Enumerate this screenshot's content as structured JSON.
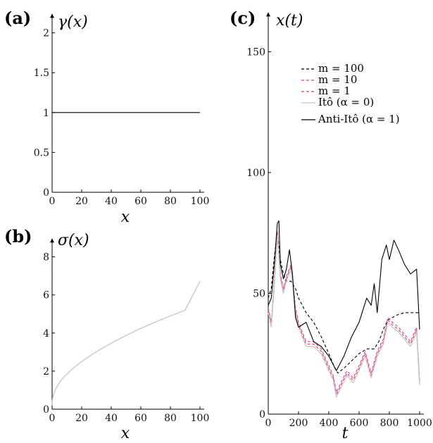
{
  "chart_data": [
    {
      "panel": "(a)",
      "type": "line",
      "ylabel": "γ(x)",
      "xlabel": "x",
      "xlim": [
        0,
        100
      ],
      "ylim": [
        0,
        2.2
      ],
      "xticks": [
        0,
        20,
        40,
        60,
        80,
        100
      ],
      "yticks": [
        0,
        0.5,
        1,
        1.5,
        2
      ],
      "grid": false,
      "series": [
        {
          "color": "#000000",
          "x": [
            0,
            100
          ],
          "y": [
            1,
            1
          ]
        }
      ]
    },
    {
      "panel": "(b)",
      "type": "line",
      "ylabel": "σ(x)",
      "xlabel": "x",
      "xlim": [
        0,
        100
      ],
      "ylim": [
        0,
        8.8
      ],
      "xticks": [
        0,
        20,
        40,
        60,
        80,
        100
      ],
      "yticks": [
        0,
        2,
        4,
        6,
        8
      ],
      "grid": false,
      "series": [
        {
          "color": "#c8c8c8",
          "x": [
            0,
            0.2,
            0.5,
            1,
            2,
            3,
            5,
            7,
            10,
            15,
            20,
            25,
            30,
            40,
            50,
            60,
            70,
            80,
            90,
            100
          ],
          "y": [
            0.2,
            0.45,
            0.61,
            0.77,
            0.98,
            1.14,
            1.4,
            1.6,
            1.85,
            2.2,
            2.5,
            2.77,
            3.02,
            3.47,
            3.87,
            4.24,
            4.58,
            4.9,
            5.2,
            6.72
          ]
        }
      ]
    },
    {
      "panel": "(c)",
      "type": "line",
      "ylabel": "x(t)",
      "xlabel": "t",
      "xlim": [
        0,
        1000
      ],
      "ylim": [
        0,
        165
      ],
      "xticks": [
        0,
        200,
        400,
        600,
        800,
        1000
      ],
      "yticks": [
        0,
        50,
        100,
        150
      ],
      "grid": false,
      "legend_position": "top-right",
      "series": [
        {
          "name": "m = 100",
          "color": "#000000",
          "style": "dashed",
          "x": [
            0,
            20,
            40,
            60,
            80,
            100,
            120,
            150,
            180,
            200,
            250,
            300,
            350,
            400,
            440,
            460,
            500,
            550,
            600,
            650,
            700,
            730,
            760,
            790,
            820,
            850,
            900,
            950,
            1000
          ],
          "y": [
            48,
            52,
            65,
            75,
            64,
            58,
            55,
            55,
            52,
            48,
            42,
            38,
            32,
            25,
            19,
            17,
            19,
            22,
            25,
            27,
            27,
            30,
            35,
            39,
            40,
            41,
            42,
            42,
            42
          ]
        },
        {
          "name": "m = 10",
          "color": "#e030c8",
          "style": "dashed",
          "x": [
            0,
            20,
            40,
            60,
            80,
            100,
            120,
            150,
            180,
            200,
            250,
            300,
            350,
            400,
            430,
            450,
            480,
            520,
            560,
            600,
            640,
            680,
            720,
            760,
            790,
            820,
            860,
            900,
            940,
            980,
            1000
          ],
          "y": [
            44,
            38,
            55,
            76,
            58,
            52,
            57,
            62,
            44,
            38,
            30,
            30,
            27,
            20,
            16,
            9,
            13,
            18,
            15,
            20,
            26,
            17,
            26,
            31,
            40,
            38,
            36,
            33,
            30,
            36,
            14
          ]
        },
        {
          "name": "m = 1",
          "color": "#e04040",
          "style": "dashed",
          "x": [
            0,
            20,
            40,
            60,
            80,
            100,
            120,
            150,
            180,
            200,
            250,
            300,
            350,
            400,
            430,
            450,
            480,
            520,
            560,
            600,
            640,
            680,
            720,
            760,
            790,
            820,
            860,
            900,
            940,
            980,
            1000
          ],
          "y": [
            43,
            37,
            54,
            75,
            57,
            51,
            56,
            61,
            43,
            37,
            29,
            29,
            26,
            19,
            15,
            8,
            12,
            17,
            14,
            19,
            25,
            16,
            25,
            30,
            39,
            37,
            35,
            32,
            29,
            35,
            13
          ]
        },
        {
          "name": "Itô (α = 0)",
          "color": "#c8c8c8",
          "style": "solid",
          "x": [
            0,
            20,
            40,
            60,
            80,
            100,
            120,
            150,
            180,
            200,
            250,
            300,
            350,
            400,
            430,
            450,
            480,
            520,
            560,
            600,
            640,
            680,
            720,
            760,
            790,
            820,
            860,
            900,
            940,
            980,
            1000
          ],
          "y": [
            42,
            36,
            53,
            74,
            56,
            50,
            55,
            60,
            42,
            36,
            28,
            28,
            25,
            18,
            14,
            7,
            11,
            16,
            13,
            18,
            24,
            15,
            24,
            29,
            38,
            36,
            34,
            31,
            28,
            34,
            12
          ]
        },
        {
          "name": "Anti-Itô (α = 1)",
          "color": "#000000",
          "style": "solid",
          "x": [
            0,
            20,
            40,
            60,
            70,
            80,
            100,
            120,
            140,
            160,
            180,
            200,
            250,
            300,
            350,
            400,
            450,
            500,
            550,
            600,
            650,
            680,
            700,
            720,
            750,
            780,
            800,
            830,
            860,
            900,
            940,
            980,
            1000
          ],
          "y": [
            45,
            48,
            62,
            79,
            80,
            62,
            56,
            60,
            68,
            58,
            40,
            36,
            38,
            30,
            28,
            24,
            18,
            24,
            32,
            38,
            48,
            45,
            54,
            42,
            64,
            70,
            64,
            72,
            68,
            62,
            58,
            60,
            35
          ]
        }
      ]
    }
  ]
}
